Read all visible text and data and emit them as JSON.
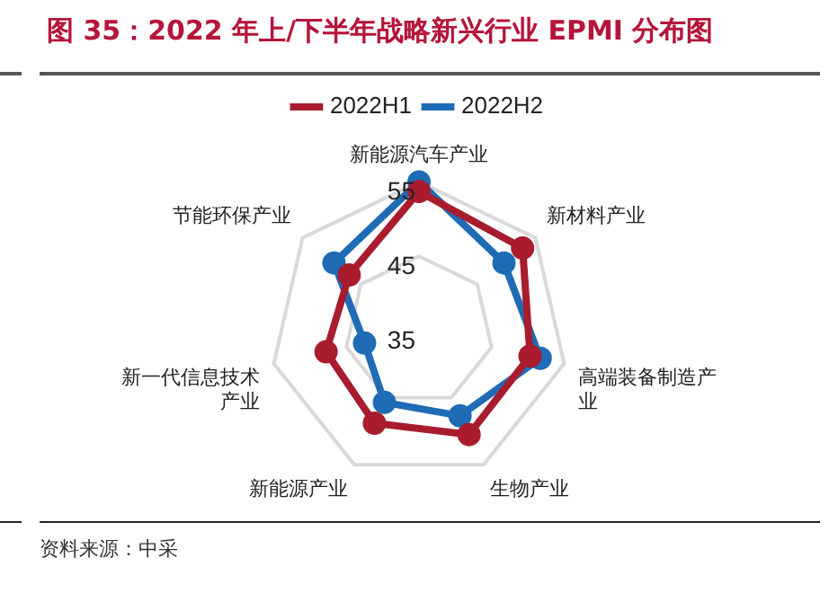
{
  "chart_data": {
    "type": "radar",
    "title": "图 35：2022 年上/下半年战略新兴行业 EPMI 分布图",
    "categories": [
      "新能源汽车产业",
      "新材料产业",
      "高端装备制造产业",
      "生物产业",
      "新能源产业",
      "新一代信息技术产业",
      "节能环保产业"
    ],
    "series": [
      {
        "name": "2022H1",
        "color": "#a81c2e",
        "values": [
          53.7,
          52.8,
          50.3,
          50.5,
          48.8,
          47.8,
          47
        ]
      },
      {
        "name": "2022H2",
        "color": "#1f6bb5",
        "values": [
          55,
          49.6,
          51.7,
          47.7,
          45.7,
          42.5,
          49.6
        ]
      }
    ],
    "ylim": [
      35,
      55
    ],
    "yticks": [
      35,
      45,
      55
    ],
    "grid": true,
    "legend": "top",
    "marker": "circle",
    "annotations": [
      "资料来源：中采"
    ]
  }
}
